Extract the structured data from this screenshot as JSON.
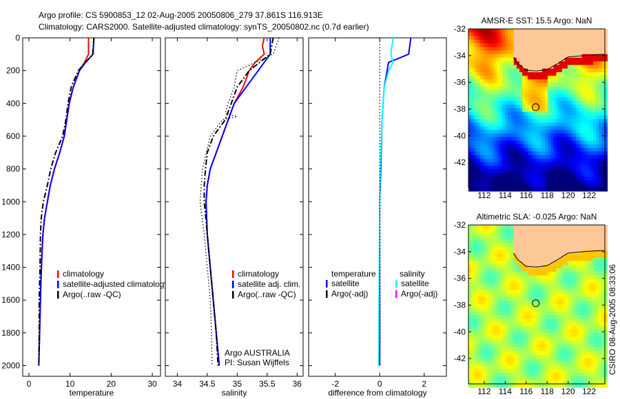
{
  "title": {
    "line1": "Argo profile: CS 5900853_12 02-Aug-2005 20050806_279 37.861S 116.913E",
    "line2": "Climatology: CARS2000. Satellite-adjusted climatology: synTS_20050802.nc (0.7d earlier)"
  },
  "side_stamp": "CSIRO 08-Aug-2005 08:33:06",
  "colors": {
    "climatology": "#ff0000",
    "satellite": "#0000ff",
    "argo": "#000000",
    "sal_sat": "#00ffff",
    "sal_argo": "#ff00ff",
    "land": "#fcc898"
  },
  "chart_data": [
    {
      "type": "line",
      "xlabel": "temperature",
      "xlim": [
        -1.5,
        32
      ],
      "ylim": [
        0,
        2065
      ],
      "xticks": [
        "0",
        "10",
        "20",
        "30"
      ],
      "xtick_values": [
        0,
        10,
        20,
        30
      ],
      "yticks": [
        "0",
        "200",
        "400",
        "600",
        "800",
        "1000",
        "1200",
        "1400",
        "1600",
        "1800",
        "2000"
      ],
      "ytick_values": [
        0,
        200,
        400,
        600,
        800,
        1000,
        1200,
        1400,
        1600,
        1800,
        2000
      ],
      "legend": [
        "climatology",
        "satellite-adjusted climatology",
        "Argo(..raw -QC)"
      ],
      "series": [
        {
          "name": "climatology",
          "style": "red",
          "depth": [
            0,
            100,
            150,
            200,
            300,
            400,
            500,
            600,
            700,
            800,
            900,
            1000,
            1100,
            1200,
            1300,
            1500,
            1700,
            2000
          ],
          "values": [
            14.5,
            14.5,
            13.5,
            12.3,
            10.8,
            9.8,
            9.2,
            8.6,
            7.5,
            6.2,
            5.2,
            4.5,
            3.8,
            3.4,
            3.2,
            2.9,
            2.7,
            2.4
          ]
        },
        {
          "name": "satellite-adjusted climatology",
          "style": "blue",
          "depth": [
            0,
            100,
            150,
            200,
            300,
            400,
            500,
            600,
            700,
            800,
            900,
            1000,
            1100,
            1200,
            1300,
            1500,
            1700,
            2000
          ],
          "values": [
            15.8,
            15.6,
            13.8,
            12.3,
            10.8,
            9.8,
            9.2,
            8.6,
            7.5,
            6.2,
            5.2,
            4.5,
            3.8,
            3.4,
            3.2,
            2.9,
            2.7,
            2.4
          ]
        },
        {
          "name": "Argo(..raw -QC)",
          "style": "dashdot",
          "depth": [
            0,
            100,
            200,
            300,
            400,
            500,
            600,
            700,
            800,
            900,
            1000,
            1100,
            1200,
            1400,
            1600,
            1800,
            2000
          ],
          "values": [
            15.8,
            15.5,
            12,
            10.3,
            9.5,
            9,
            8.2,
            6.5,
            5.3,
            4.5,
            3.5,
            3,
            2.8,
            2.7,
            2.5,
            2.5,
            2.4
          ]
        }
      ]
    },
    {
      "type": "line",
      "xlabel": "salinity",
      "xlim": [
        33.8,
        36.1
      ],
      "ylim": [
        0,
        2065
      ],
      "xticks": [
        "34",
        "34.5",
        "35",
        "35.5",
        "36"
      ],
      "xtick_values": [
        34,
        34.5,
        35,
        35.5,
        36
      ],
      "legend": [
        "climatology",
        "satellite adj. clim.",
        "Argo(..raw -QC)"
      ],
      "annotation": [
        "Argo AUSTRALIA",
        "PI: Susan Wijffels"
      ],
      "series": [
        {
          "name": "climatology",
          "style": "red",
          "depth": [
            0,
            50,
            100,
            150,
            200,
            300,
            400,
            500,
            600,
            700,
            800,
            900,
            1000,
            1200,
            1400,
            1600,
            1800,
            2000
          ],
          "values": [
            35.45,
            35.42,
            35.45,
            35.3,
            35.2,
            35.1,
            34.95,
            34.85,
            34.75,
            34.65,
            34.55,
            34.5,
            34.48,
            34.5,
            34.55,
            34.6,
            34.65,
            34.7
          ]
        },
        {
          "name": "satellite adj. clim.",
          "style": "blue",
          "depth": [
            0,
            100,
            150,
            200,
            300,
            400,
            500,
            600,
            700,
            800,
            900,
            1000,
            1200,
            1400,
            1600,
            1800,
            2000
          ],
          "values": [
            35.55,
            35.55,
            35.45,
            35.35,
            35.15,
            34.95,
            34.85,
            34.75,
            34.65,
            34.55,
            34.5,
            34.48,
            34.5,
            34.55,
            34.6,
            34.65,
            34.7
          ]
        },
        {
          "name": "Argo(..raw -QC)",
          "style": "dashdot",
          "depth": [
            0,
            100,
            200,
            300,
            400,
            500,
            600,
            700,
            800,
            900,
            1000,
            1200,
            1400,
            1600,
            1800,
            2000
          ],
          "values": [
            35.6,
            35.55,
            35.2,
            35.0,
            34.9,
            34.8,
            34.6,
            34.5,
            34.47,
            34.45,
            34.45,
            34.5,
            34.55,
            34.6,
            34.65,
            34.68
          ]
        },
        {
          "name": "Argo raw",
          "style": "dotted",
          "depth": [
            0,
            100,
            200,
            300,
            400,
            460,
            480,
            500,
            600,
            800,
            1000,
            1200,
            1400,
            1600,
            1800,
            2000
          ],
          "values": [
            35.7,
            35.6,
            35.0,
            34.95,
            34.85,
            34.8,
            35.0,
            34.75,
            34.55,
            34.42,
            34.38,
            34.45,
            34.5,
            34.55,
            34.57,
            34.58
          ]
        }
      ]
    },
    {
      "type": "line",
      "xlabel": "difference from climatology",
      "xlim": [
        -3.2,
        3
      ],
      "ylim": [
        0,
        2065
      ],
      "xticks": [
        "-2",
        "0",
        "2"
      ],
      "xtick_values": [
        -2,
        0,
        2
      ],
      "legend_left_title": "temperature",
      "legend_right_title": "salinity",
      "legend_left": [
        "satellite",
        "Argo(-adj)"
      ],
      "legend_right": [
        "satellite",
        "Argo(-adj)"
      ],
      "series": [
        {
          "name": "temperature satellite",
          "style": "blue",
          "depth": [
            0,
            100,
            150,
            300,
            500,
            800,
            1000,
            2000
          ],
          "values": [
            1.4,
            1.3,
            0.4,
            0.2,
            0.1,
            0.05,
            0,
            0
          ]
        },
        {
          "name": "salinity satellite",
          "style": "cyan",
          "depth": [
            0,
            100,
            150,
            200,
            300,
            500,
            800,
            1000,
            2000
          ],
          "values": [
            0.6,
            0.5,
            0.6,
            0.4,
            0.2,
            0.1,
            0.02,
            0,
            -0.05
          ]
        },
        {
          "name": "zero",
          "style": "dotted",
          "depth": [
            0,
            2000
          ],
          "values": [
            0,
            0
          ]
        }
      ]
    },
    {
      "type": "heatmap",
      "title": "AMSR-E SST: 15.5 Argo: NaN",
      "xticks": [
        "112",
        "114",
        "116",
        "118",
        "120",
        "122"
      ],
      "xtick_values": [
        112,
        114,
        116,
        118,
        120,
        122
      ],
      "yticks": [
        "-32",
        "-34",
        "-36",
        "-38",
        "-40",
        "-42"
      ],
      "ytick_values": [
        -32,
        -34,
        -36,
        -38,
        -40,
        -42
      ],
      "xlim": [
        110.5,
        123.5
      ],
      "ylim": [
        -43.9,
        -32
      ],
      "marker": [
        116.913,
        -37.861
      ]
    },
    {
      "type": "heatmap",
      "title": "Altimetric SLA: -0.025 Argo: NaN",
      "xticks": [
        "112",
        "114",
        "116",
        "118",
        "120",
        "122"
      ],
      "xtick_values": [
        112,
        114,
        116,
        118,
        120,
        122
      ],
      "yticks": [
        "-32",
        "-34",
        "-36",
        "-38",
        "-40",
        "-42"
      ],
      "ytick_values": [
        -32,
        -34,
        -36,
        -38,
        -40,
        -42
      ],
      "xlim": [
        110.5,
        123.5
      ],
      "ylim": [
        -43.9,
        -32
      ],
      "marker": [
        116.913,
        -37.861
      ]
    }
  ]
}
